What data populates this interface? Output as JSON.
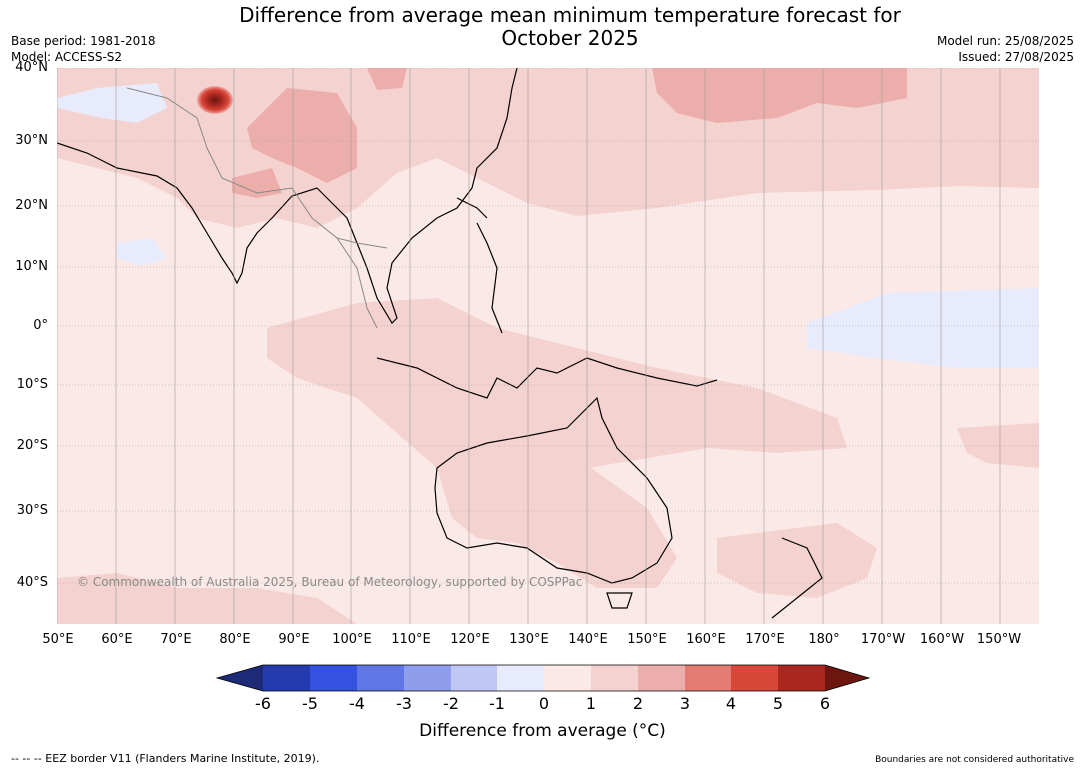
{
  "header": {
    "title_line1": "Difference from average mean minimum temperature forecast for",
    "title_line2": "October 2025",
    "base_period": "Base period: 1981-2018",
    "model": "Model: ACCESS-S2",
    "model_run": "Model run: 25/08/2025",
    "issued": "Issued: 27/08/2025"
  },
  "map": {
    "lat_labels": [
      "40°N",
      "30°N",
      "20°N",
      "10°N",
      "0°",
      "10°S",
      "20°S",
      "30°S",
      "40°S"
    ],
    "lon_labels": [
      "50°E",
      "60°E",
      "70°E",
      "80°E",
      "90°E",
      "100°E",
      "110°E",
      "120°E",
      "130°E",
      "140°E",
      "150°E",
      "160°E",
      "170°E",
      "180°",
      "170°W",
      "160°W",
      "150°W"
    ],
    "copyright": "© Commonwealth of Australia 2025, Bureau of Meteorology, supported by COSPPac",
    "colors": {
      "ocean_base": "#fbe9e7",
      "land_warm": "#f4d2cf",
      "warm2": "#ecaeaa",
      "warm3": "#e47c73",
      "warm5": "#b52a22",
      "cool1": "#e8ebfb"
    }
  },
  "colorbar": {
    "ticks": [
      "-6",
      "-5",
      "-4",
      "-3",
      "-2",
      "-1",
      "0",
      "1",
      "2",
      "3",
      "4",
      "5",
      "6"
    ],
    "colors": [
      "#1d2a78",
      "#243aad",
      "#3352e0",
      "#6076e6",
      "#8f9eec",
      "#c0c7f4",
      "#e8ebfb",
      "#fbe9e7",
      "#f4d2cf",
      "#ecaeaa",
      "#e47c73",
      "#d9463a",
      "#a8271f",
      "#6d1610"
    ],
    "label": "Difference from average (°C)"
  },
  "footer": {
    "eez": "--  --  -- EEZ border V11 (Flanders Marine Institute, 2019).",
    "boundaries": "Boundaries are not considered authoritative"
  }
}
